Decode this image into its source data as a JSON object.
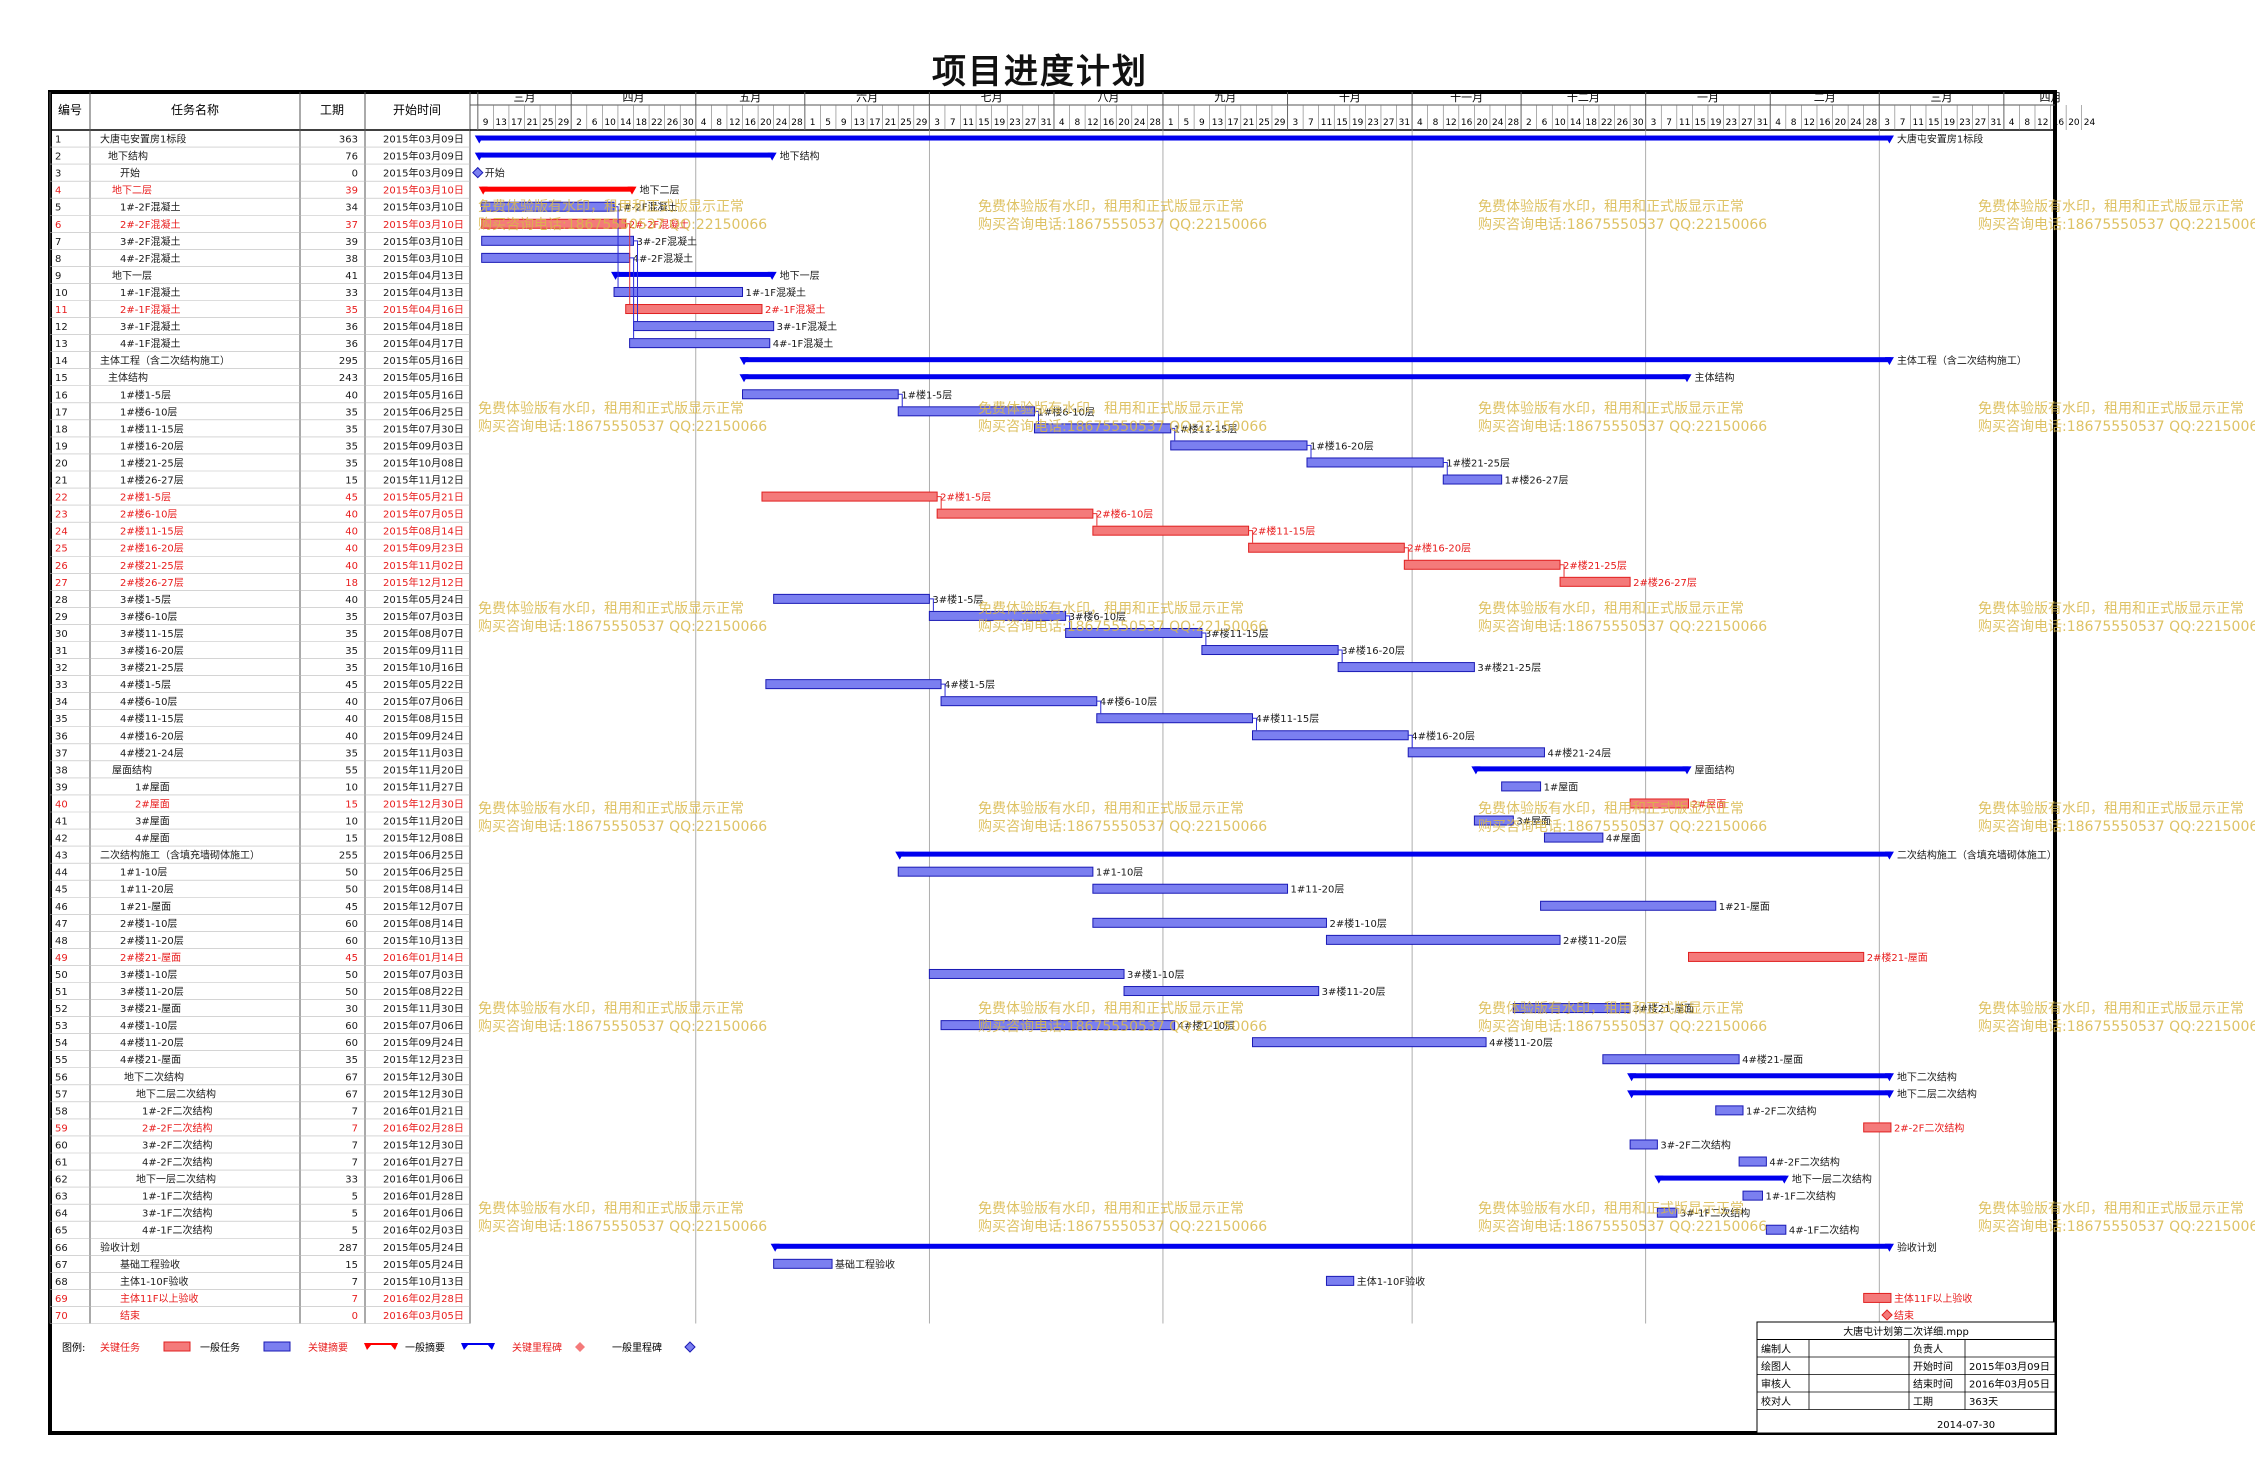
{
  "title": "项目进度计划",
  "columns": [
    "编号",
    "任务名称",
    "工期",
    "开始时间"
  ],
  "months": [
    {
      "label": "三月",
      "days": [
        9,
        13,
        17,
        21,
        25,
        29
      ]
    },
    {
      "label": "四月",
      "days": [
        2,
        6,
        10,
        14,
        18,
        22,
        26,
        30
      ]
    },
    {
      "label": "五月",
      "days": [
        4,
        8,
        12,
        16,
        20,
        24,
        28
      ]
    },
    {
      "label": "六月",
      "days": [
        1,
        5,
        9,
        13,
        17,
        21,
        25,
        29
      ]
    },
    {
      "label": "七月",
      "days": [
        3,
        7,
        11,
        15,
        19,
        23,
        27,
        31
      ]
    },
    {
      "label": "八月",
      "days": [
        4,
        8,
        12,
        16,
        20,
        24,
        28
      ]
    },
    {
      "label": "九月",
      "days": [
        1,
        5,
        9,
        13,
        17,
        21,
        25,
        29
      ]
    },
    {
      "label": "十月",
      "days": [
        3,
        7,
        11,
        15,
        19,
        23,
        27,
        31
      ]
    },
    {
      "label": "十一月",
      "days": [
        4,
        8,
        12,
        16,
        20,
        24,
        28
      ]
    },
    {
      "label": "十二月",
      "days": [
        2,
        6,
        10,
        14,
        18,
        22,
        26,
        30
      ]
    },
    {
      "label": "一月",
      "days": [
        3,
        7,
        11,
        15,
        19,
        23,
        27,
        31
      ]
    },
    {
      "label": "二月",
      "days": [
        4,
        8,
        12,
        16,
        20,
        24,
        28
      ]
    },
    {
      "label": "三月",
      "days": [
        3,
        7,
        11,
        15,
        19,
        23,
        27,
        31
      ]
    },
    {
      "label": "四月",
      "days": [
        4,
        8,
        12,
        16,
        20,
        24
      ]
    }
  ],
  "chart_data": {
    "type": "gantt",
    "tasks": [
      {
        "id": "1",
        "name": "大唐屯安置房1标段",
        "dur": "363",
        "start": "2015年03月09日",
        "type": "summary",
        "crit": false,
        "label": "大唐屯安置房1标段"
      },
      {
        "id": "2",
        "name": "地下结构",
        "dur": "76",
        "start": "2015年03月09日",
        "type": "summary",
        "crit": false,
        "label": "地下结构"
      },
      {
        "id": "3",
        "name": "开始",
        "dur": "0",
        "start": "2015年03月09日",
        "type": "milestone",
        "crit": false,
        "label": "开始"
      },
      {
        "id": "4",
        "name": "地下二层",
        "dur": "39",
        "start": "2015年03月10日",
        "type": "summary",
        "crit": true,
        "label": "地下二层"
      },
      {
        "id": "5",
        "name": "1#-2F混凝土",
        "dur": "34",
        "start": "2015年03月10日",
        "type": "task",
        "crit": false,
        "label": "1#-2F混凝土"
      },
      {
        "id": "6",
        "name": "2#-2F混凝土",
        "dur": "37",
        "start": "2015年03月10日",
        "type": "task",
        "crit": true,
        "label": "2#-2F混凝土"
      },
      {
        "id": "7",
        "name": "3#-2F混凝土",
        "dur": "39",
        "start": "2015年03月10日",
        "type": "task",
        "crit": false,
        "label": "3#-2F混凝土"
      },
      {
        "id": "8",
        "name": "4#-2F混凝土",
        "dur": "38",
        "start": "2015年03月10日",
        "type": "task",
        "crit": false,
        "label": "4#-2F混凝土"
      },
      {
        "id": "9",
        "name": "地下一层",
        "dur": "41",
        "start": "2015年04月13日",
        "type": "summary",
        "crit": false,
        "label": "地下一层"
      },
      {
        "id": "10",
        "name": "1#-1F混凝土",
        "dur": "33",
        "start": "2015年04月13日",
        "type": "task",
        "crit": false,
        "label": "1#-1F混凝土"
      },
      {
        "id": "11",
        "name": "2#-1F混凝土",
        "dur": "35",
        "start": "2015年04月16日",
        "type": "task",
        "crit": true,
        "label": "2#-1F混凝土"
      },
      {
        "id": "12",
        "name": "3#-1F混凝土",
        "dur": "36",
        "start": "2015年04月18日",
        "type": "task",
        "crit": false,
        "label": "3#-1F混凝土"
      },
      {
        "id": "13",
        "name": "4#-1F混凝土",
        "dur": "36",
        "start": "2015年04月17日",
        "type": "task",
        "crit": false,
        "label": "4#-1F混凝土"
      },
      {
        "id": "14",
        "name": "主体工程（含二次结构施工）",
        "dur": "295",
        "start": "2015年05月16日",
        "type": "summary",
        "crit": false,
        "label": "主体工程（含二次结构施工）"
      },
      {
        "id": "15",
        "name": "主体结构",
        "dur": "243",
        "start": "2015年05月16日",
        "type": "summary",
        "crit": false,
        "label": "主体结构"
      },
      {
        "id": "16",
        "name": "1#楼1-5层",
        "dur": "40",
        "start": "2015年05月16日",
        "type": "task",
        "crit": false,
        "label": "1#楼1-5层"
      },
      {
        "id": "17",
        "name": "1#楼6-10层",
        "dur": "35",
        "start": "2015年06月25日",
        "type": "task",
        "crit": false,
        "label": "1#楼6-10层"
      },
      {
        "id": "18",
        "name": "1#楼11-15层",
        "dur": "35",
        "start": "2015年07月30日",
        "type": "task",
        "crit": false,
        "label": "1#楼11-15层"
      },
      {
        "id": "19",
        "name": "1#楼16-20层",
        "dur": "35",
        "start": "2015年09月03日",
        "type": "task",
        "crit": false,
        "label": "1#楼16-20层"
      },
      {
        "id": "20",
        "name": "1#楼21-25层",
        "dur": "35",
        "start": "2015年10月08日",
        "type": "task",
        "crit": false,
        "label": "1#楼21-25层"
      },
      {
        "id": "21",
        "name": "1#楼26-27层",
        "dur": "15",
        "start": "2015年11月12日",
        "type": "task",
        "crit": false,
        "label": "1#楼26-27层"
      },
      {
        "id": "22",
        "name": "2#楼1-5层",
        "dur": "45",
        "start": "2015年05月21日",
        "type": "task",
        "crit": true,
        "label": "2#楼1-5层"
      },
      {
        "id": "23",
        "name": "2#楼6-10层",
        "dur": "40",
        "start": "2015年07月05日",
        "type": "task",
        "crit": true,
        "label": "2#楼6-10层"
      },
      {
        "id": "24",
        "name": "2#楼11-15层",
        "dur": "40",
        "start": "2015年08月14日",
        "type": "task",
        "crit": true,
        "label": "2#楼11-15层"
      },
      {
        "id": "25",
        "name": "2#楼16-20层",
        "dur": "40",
        "start": "2015年09月23日",
        "type": "task",
        "crit": true,
        "label": "2#楼16-20层"
      },
      {
        "id": "26",
        "name": "2#楼21-25层",
        "dur": "40",
        "start": "2015年11月02日",
        "type": "task",
        "crit": true,
        "label": "2#楼21-25层"
      },
      {
        "id": "27",
        "name": "2#楼26-27层",
        "dur": "18",
        "start": "2015年12月12日",
        "type": "task",
        "crit": true,
        "label": "2#楼26-27层"
      },
      {
        "id": "28",
        "name": "3#楼1-5层",
        "dur": "40",
        "start": "2015年05月24日",
        "type": "task",
        "crit": false,
        "label": "3#楼1-5层"
      },
      {
        "id": "29",
        "name": "3#楼6-10层",
        "dur": "35",
        "start": "2015年07月03日",
        "type": "task",
        "crit": false,
        "label": "3#楼6-10层"
      },
      {
        "id": "30",
        "name": "3#楼11-15层",
        "dur": "35",
        "start": "2015年08月07日",
        "type": "task",
        "crit": false,
        "label": "3#楼11-15层"
      },
      {
        "id": "31",
        "name": "3#楼16-20层",
        "dur": "35",
        "start": "2015年09月11日",
        "type": "task",
        "crit": false,
        "label": "3#楼16-20层"
      },
      {
        "id": "32",
        "name": "3#楼21-25层",
        "dur": "35",
        "start": "2015年10月16日",
        "type": "task",
        "crit": false,
        "label": "3#楼21-25层"
      },
      {
        "id": "33",
        "name": "4#楼1-5层",
        "dur": "45",
        "start": "2015年05月22日",
        "type": "task",
        "crit": false,
        "label": "4#楼1-5层"
      },
      {
        "id": "34",
        "name": "4#楼6-10层",
        "dur": "40",
        "start": "2015年07月06日",
        "type": "task",
        "crit": false,
        "label": "4#楼6-10层"
      },
      {
        "id": "35",
        "name": "4#楼11-15层",
        "dur": "40",
        "start": "2015年08月15日",
        "type": "task",
        "crit": false,
        "label": "4#楼11-15层"
      },
      {
        "id": "36",
        "name": "4#楼16-20层",
        "dur": "40",
        "start": "2015年09月24日",
        "type": "task",
        "crit": false,
        "label": "4#楼16-20层"
      },
      {
        "id": "37",
        "name": "4#楼21-24层",
        "dur": "35",
        "start": "2015年11月03日",
        "type": "task",
        "crit": false,
        "label": "4#楼21-24层"
      },
      {
        "id": "38",
        "name": "屋面结构",
        "dur": "55",
        "start": "2015年11月20日",
        "type": "summary",
        "crit": false,
        "label": "屋面结构"
      },
      {
        "id": "39",
        "name": "1#屋面",
        "dur": "10",
        "start": "2015年11月27日",
        "type": "task",
        "crit": false,
        "label": "1#屋面"
      },
      {
        "id": "40",
        "name": "2#屋面",
        "dur": "15",
        "start": "2015年12月30日",
        "type": "task",
        "crit": true,
        "label": "2#屋面"
      },
      {
        "id": "41",
        "name": "3#屋面",
        "dur": "10",
        "start": "2015年11月20日",
        "type": "task",
        "crit": false,
        "label": "3#屋面"
      },
      {
        "id": "42",
        "name": "4#屋面",
        "dur": "15",
        "start": "2015年12月08日",
        "type": "task",
        "crit": false,
        "label": "4#屋面"
      },
      {
        "id": "43",
        "name": "二次结构施工（含填充墙砌体施工）",
        "dur": "255",
        "start": "2015年06月25日",
        "type": "summary",
        "crit": false,
        "label": "二次结构施工（含填充墙砌体施工）"
      },
      {
        "id": "44",
        "name": "1#1-10层",
        "dur": "50",
        "start": "2015年06月25日",
        "type": "task",
        "crit": false,
        "label": "1#1-10层"
      },
      {
        "id": "45",
        "name": "1#11-20层",
        "dur": "50",
        "start": "2015年08月14日",
        "type": "task",
        "crit": false,
        "label": "1#11-20层"
      },
      {
        "id": "46",
        "name": "1#21-屋面",
        "dur": "45",
        "start": "2015年12月07日",
        "type": "task",
        "crit": false,
        "label": "1#21-屋面"
      },
      {
        "id": "47",
        "name": "2#楼1-10层",
        "dur": "60",
        "start": "2015年08月14日",
        "type": "task",
        "crit": false,
        "label": "2#楼1-10层"
      },
      {
        "id": "48",
        "name": "2#楼11-20层",
        "dur": "60",
        "start": "2015年10月13日",
        "type": "task",
        "crit": false,
        "label": "2#楼11-20层"
      },
      {
        "id": "49",
        "name": "2#楼21-屋面",
        "dur": "45",
        "start": "2016年01月14日",
        "type": "task",
        "crit": true,
        "label": "2#楼21-屋面"
      },
      {
        "id": "50",
        "name": "3#楼1-10层",
        "dur": "50",
        "start": "2015年07月03日",
        "type": "task",
        "crit": false,
        "label": "3#楼1-10层"
      },
      {
        "id": "51",
        "name": "3#楼11-20层",
        "dur": "50",
        "start": "2015年08月22日",
        "type": "task",
        "crit": false,
        "label": "3#楼11-20层"
      },
      {
        "id": "52",
        "name": "3#楼21-屋面",
        "dur": "30",
        "start": "2015年11月30日",
        "type": "task",
        "crit": false,
        "label": "3#楼21-屋面"
      },
      {
        "id": "53",
        "name": "4#楼1-10层",
        "dur": "60",
        "start": "2015年07月06日",
        "type": "task",
        "crit": false,
        "label": "4#楼1-10层"
      },
      {
        "id": "54",
        "name": "4#楼11-20层",
        "dur": "60",
        "start": "2015年09月24日",
        "type": "task",
        "crit": false,
        "label": "4#楼11-20层"
      },
      {
        "id": "55",
        "name": "4#楼21-屋面",
        "dur": "35",
        "start": "2015年12月23日",
        "type": "task",
        "crit": false,
        "label": "4#楼21-屋面"
      },
      {
        "id": "56",
        "name": "地下二次结构",
        "dur": "67",
        "start": "2015年12月30日",
        "type": "summary",
        "crit": false,
        "label": "地下二次结构"
      },
      {
        "id": "57",
        "name": "地下二层二次结构",
        "dur": "67",
        "start": "2015年12月30日",
        "type": "summary",
        "crit": false,
        "label": "地下二层二次结构"
      },
      {
        "id": "58",
        "name": "1#-2F二次结构",
        "dur": "7",
        "start": "2016年01月21日",
        "type": "task",
        "crit": false,
        "label": "1#-2F二次结构"
      },
      {
        "id": "59",
        "name": "2#-2F二次结构",
        "dur": "7",
        "start": "2016年02月28日",
        "type": "task",
        "crit": true,
        "label": "2#-2F二次结构"
      },
      {
        "id": "60",
        "name": "3#-2F二次结构",
        "dur": "7",
        "start": "2015年12月30日",
        "type": "task",
        "crit": false,
        "label": "3#-2F二次结构"
      },
      {
        "id": "61",
        "name": "4#-2F二次结构",
        "dur": "7",
        "start": "2016年01月27日",
        "type": "task",
        "crit": false,
        "label": "4#-2F二次结构"
      },
      {
        "id": "62",
        "name": "地下一层二次结构",
        "dur": "33",
        "start": "2016年01月06日",
        "type": "summary",
        "crit": false,
        "label": "地下一层二次结构"
      },
      {
        "id": "63",
        "name": "1#-1F二次结构",
        "dur": "5",
        "start": "2016年01月28日",
        "type": "task",
        "crit": false,
        "label": "1#-1F二次结构"
      },
      {
        "id": "64",
        "name": "3#-1F二次结构",
        "dur": "5",
        "start": "2016年01月06日",
        "type": "task",
        "crit": false,
        "label": "3#-1F二次结构"
      },
      {
        "id": "65",
        "name": "4#-1F二次结构",
        "dur": "5",
        "start": "2016年02月03日",
        "type": "task",
        "crit": false,
        "label": "4#-1F二次结构"
      },
      {
        "id": "66",
        "name": "验收计划",
        "dur": "287",
        "start": "2015年05月24日",
        "type": "summary",
        "crit": false,
        "label": "验收计划"
      },
      {
        "id": "67",
        "name": "基础工程验收",
        "dur": "15",
        "start": "2015年05月24日",
        "type": "task",
        "crit": false,
        "label": "基础工程验收"
      },
      {
        "id": "68",
        "name": "主体1-10F验收",
        "dur": "7",
        "start": "2015年10月13日",
        "type": "task",
        "crit": false,
        "label": "主体1-10F验收"
      },
      {
        "id": "69",
        "name": "主体11F以上验收",
        "dur": "7",
        "start": "2016年02月28日",
        "type": "task",
        "crit": true,
        "label": "主体11F以上验收"
      },
      {
        "id": "70",
        "name": "结束",
        "dur": "0",
        "start": "2016年03月05日",
        "type": "milestone",
        "crit": true,
        "label": "结束"
      }
    ]
  },
  "legend": {
    "prefix": "图例:",
    "items": [
      {
        "label": "关键任务",
        "color": "#e8212b",
        "kind": "crit-task"
      },
      {
        "label": "一般任务",
        "color": "#000000",
        "kind": "task"
      },
      {
        "label": "关键摘要",
        "color": "#e8212b",
        "kind": "summary-crit"
      },
      {
        "label": "一般摘要",
        "color": "#000000",
        "kind": "summary"
      },
      {
        "label": "关键里程碑",
        "color": "#e8212b",
        "kind": "milestone-crit"
      },
      {
        "label": "一般里程碑",
        "color": "#000000",
        "kind": "milestone"
      }
    ]
  },
  "info_box": {
    "filename": "大唐屯计划第二次详细.mpp",
    "rows": [
      [
        "编制人",
        "",
        "负责人",
        ""
      ],
      [
        "绘图人",
        "",
        "开始时间",
        "2015年03月09日"
      ],
      [
        "审核人",
        "",
        "结束时间",
        "2016年03月05日"
      ],
      [
        "校对人",
        "",
        "工期",
        "363天"
      ]
    ],
    "date": "2014-07-30"
  },
  "watermark": {
    "line1": "免费体验版有水印，租用和正式版显示正常",
    "line2": "购买咨询电话:18675550537 QQ:22150066"
  },
  "colors": {
    "task_fill": "#7b7ff0",
    "task_border": "#1a1ab5",
    "crit_fill": "#f47a7a",
    "crit_border": "#e02020",
    "summary": "#0000ee",
    "crit_summary": "#ff0000",
    "link": "#2c2cd8",
    "crit_link": "#e83030",
    "label": "#1a1a1a",
    "crit_label": "#e81c1c",
    "grid": "#999999",
    "watermark": "#d9b84a"
  }
}
